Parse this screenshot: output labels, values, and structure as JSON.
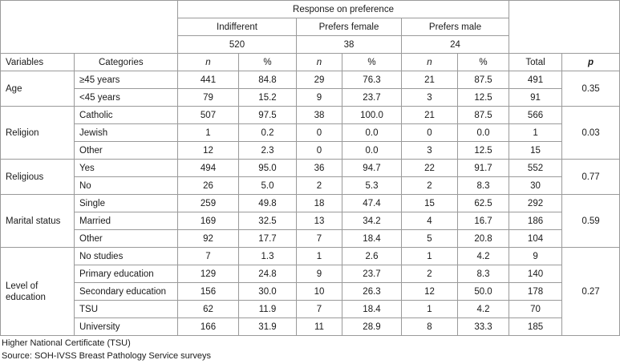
{
  "header": {
    "response_title": "Response on preference",
    "groups": [
      {
        "label": "Indifferent",
        "total": "520"
      },
      {
        "label": "Prefers female",
        "total": "38"
      },
      {
        "label": "Prefers male",
        "total": "24"
      }
    ],
    "col_variables": "Variables",
    "col_categories": "Categories",
    "col_n": "n",
    "col_pct": "%",
    "col_total": "Total",
    "col_p": "p"
  },
  "groups": [
    {
      "variable": "Age",
      "p": "0.35",
      "rows": [
        {
          "category": "≥45 years",
          "cells": [
            "441",
            "84.8",
            "29",
            "76.3",
            "21",
            "87.5",
            "491"
          ]
        },
        {
          "category": "<45 years",
          "cells": [
            "79",
            "15.2",
            "9",
            "23.7",
            "3",
            "12.5",
            "91"
          ]
        }
      ]
    },
    {
      "variable": "Religion",
      "p": "0.03",
      "rows": [
        {
          "category": "Catholic",
          "cells": [
            "507",
            "97.5",
            "38",
            "100.0",
            "21",
            "87.5",
            "566"
          ]
        },
        {
          "category": "Jewish",
          "cells": [
            "1",
            "0.2",
            "0",
            "0.0",
            "0",
            "0.0",
            "1"
          ]
        },
        {
          "category": "Other",
          "cells": [
            "12",
            "2.3",
            "0",
            "0.0",
            "3",
            "12.5",
            "15"
          ]
        }
      ]
    },
    {
      "variable": "Religious",
      "p": "0.77",
      "rows": [
        {
          "category": "Yes",
          "cells": [
            "494",
            "95.0",
            "36",
            "94.7",
            "22",
            "91.7",
            "552"
          ]
        },
        {
          "category": "No",
          "cells": [
            "26",
            "5.0",
            "2",
            "5.3",
            "2",
            "8.3",
            "30"
          ]
        }
      ]
    },
    {
      "variable": "Marital status",
      "p": "0.59",
      "rows": [
        {
          "category": "Single",
          "cells": [
            "259",
            "49.8",
            "18",
            "47.4",
            "15",
            "62.5",
            "292"
          ]
        },
        {
          "category": "Married",
          "cells": [
            "169",
            "32.5",
            "13",
            "34.2",
            "4",
            "16.7",
            "186"
          ]
        },
        {
          "category": "Other",
          "cells": [
            "92",
            "17.7",
            "7",
            "18.4",
            "5",
            "20.8",
            "104"
          ]
        }
      ]
    },
    {
      "variable": "Level of education",
      "p": "0.27",
      "rows": [
        {
          "category": "No studies",
          "cells": [
            "7",
            "1.3",
            "1",
            "2.6",
            "1",
            "4.2",
            "9"
          ]
        },
        {
          "category": "Primary education",
          "cells": [
            "129",
            "24.8",
            "9",
            "23.7",
            "2",
            "8.3",
            "140"
          ]
        },
        {
          "category": "Secondary education",
          "cells": [
            "156",
            "30.0",
            "10",
            "26.3",
            "12",
            "50.0",
            "178"
          ]
        },
        {
          "category": "TSU",
          "cells": [
            "62",
            "11.9",
            "7",
            "18.4",
            "1",
            "4.2",
            "70"
          ]
        },
        {
          "category": "University",
          "cells": [
            "166",
            "31.9",
            "11",
            "28.9",
            "8",
            "33.3",
            "185"
          ]
        }
      ]
    }
  ],
  "footnotes": [
    "Higher National Certificate (TSU)",
    "Source: SOH-IVSS Breast Pathology Service surveys"
  ]
}
